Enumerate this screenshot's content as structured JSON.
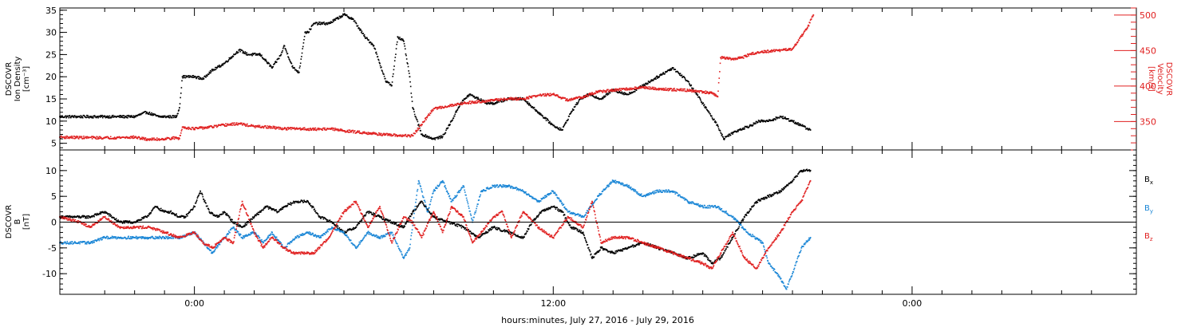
{
  "colors": {
    "black": "#000000",
    "red": "#e02020",
    "blue": "#1a86d6",
    "axis": "#000000"
  },
  "x_axis": {
    "label": "hours:minutes, July 27, 2016 - July 29, 2016",
    "range_hours": [
      -4.5,
      31.5
    ],
    "tick_labels": [
      {
        "hour": 0,
        "label": "0:00"
      },
      {
        "hour": 12,
        "label": "12:00"
      },
      {
        "hour": 24,
        "label": "0:00"
      }
    ],
    "minor_tick_hours": [
      -3,
      -2,
      -1,
      1,
      2,
      3,
      4,
      5,
      6,
      7,
      8,
      9,
      10,
      11,
      13,
      14,
      15,
      16,
      17,
      18,
      19,
      20,
      21,
      22,
      23,
      25,
      26,
      27,
      28,
      29,
      30
    ]
  },
  "chart_data": [
    {
      "type": "scatter",
      "panel": "top",
      "left_axis": {
        "label_lines": [
          "DSCOVR",
          "Ion Density",
          "[cm⁻³]"
        ],
        "ylim": [
          3.5,
          35.5
        ],
        "ticks": [
          5,
          10,
          15,
          20,
          25,
          30,
          35
        ]
      },
      "right_axis": {
        "label_lines": [
          "DSCOVR",
          "Velocity",
          "[km/s]"
        ],
        "ylim": [
          310,
          510
        ],
        "ticks": [
          350,
          400,
          450,
          500
        ]
      },
      "series": [
        {
          "axis": "left",
          "color": "black",
          "x": [
            -4.5,
            -3.0,
            -2.0,
            -1.6,
            -1.2,
            -0.6,
            -0.5,
            -0.4,
            0.0,
            0.3,
            0.5,
            1.0,
            1.5,
            1.8,
            2.2,
            2.6,
            2.9,
            3.0,
            3.3,
            3.5,
            3.7,
            3.8,
            4.0,
            4.5,
            5.0,
            5.3,
            5.7,
            6.0,
            6.2,
            6.4,
            6.6,
            6.8,
            7.0,
            7.2,
            7.3,
            7.6,
            8.0,
            8.3,
            8.6,
            8.9,
            9.2,
            9.5,
            9.8,
            10.0,
            10.5,
            11.0,
            11.5,
            12.0,
            12.3,
            12.6,
            12.9,
            13.2,
            13.6,
            14.0,
            14.5,
            15.0,
            15.5,
            16.0,
            16.5,
            17.0,
            17.2,
            17.5,
            17.7,
            17.9,
            18.2,
            18.6,
            18.9,
            19.2,
            19.6,
            20.0,
            20.3,
            20.6
          ],
          "y": [
            11,
            11,
            11,
            12,
            11,
            11,
            13,
            20,
            20,
            19.5,
            21,
            23,
            26,
            25,
            25,
            22,
            25,
            27,
            22,
            21,
            30,
            30,
            32,
            32,
            34,
            33,
            29,
            27,
            23,
            19,
            18,
            29,
            28,
            20,
            13,
            7,
            6,
            6.5,
            10,
            14,
            16,
            15,
            14,
            14,
            15,
            15,
            12,
            9,
            8,
            12,
            15,
            16,
            15,
            17,
            16,
            18,
            20,
            22,
            19,
            14,
            12,
            9,
            6,
            7,
            8,
            9,
            10,
            10,
            11,
            10,
            9,
            8
          ]
        },
        {
          "axis": "right",
          "color": "red",
          "x": [
            -4.5,
            -3.0,
            -2.0,
            -1.6,
            -1.2,
            -0.6,
            -0.5,
            -0.4,
            0.0,
            0.5,
            1.0,
            1.5,
            2.0,
            2.5,
            3.0,
            3.5,
            4.0,
            4.5,
            5.0,
            5.5,
            6.0,
            6.5,
            7.0,
            7.3,
            7.6,
            8.0,
            8.5,
            9.0,
            9.5,
            10.0,
            10.5,
            11.0,
            11.5,
            12.0,
            12.5,
            13.0,
            13.5,
            14.0,
            14.5,
            15.0,
            15.5,
            16.0,
            16.5,
            17.0,
            17.3,
            17.5,
            17.6,
            18.0,
            18.3,
            18.6,
            19.0,
            19.5,
            20.0,
            20.3,
            20.5,
            20.7
          ],
          "y": [
            328,
            327,
            328,
            325,
            325,
            327,
            326,
            342,
            340,
            342,
            345,
            347,
            343,
            342,
            340,
            340,
            339,
            340,
            337,
            335,
            333,
            331,
            330,
            330,
            346,
            368,
            372,
            376,
            378,
            380,
            382,
            382,
            387,
            388,
            380,
            385,
            392,
            394,
            396,
            398,
            396,
            395,
            394,
            392,
            390,
            385,
            440,
            438,
            440,
            445,
            448,
            450,
            452,
            470,
            482,
            500
          ]
        }
      ]
    },
    {
      "type": "scatter",
      "panel": "bottom",
      "left_axis": {
        "label_lines": [
          "DSCOVR",
          "B",
          "[nT]"
        ],
        "ylim": [
          -14,
          14
        ],
        "ticks": [
          -10,
          -5,
          0,
          5,
          10
        ]
      },
      "zero_line": 0,
      "series": [
        {
          "name": "Bx",
          "color": "black",
          "x": [
            -4.5,
            -3.5,
            -3.0,
            -2.5,
            -2.0,
            -1.6,
            -1.3,
            -1.0,
            -0.8,
            -0.5,
            -0.3,
            0.0,
            0.2,
            0.5,
            0.8,
            1.0,
            1.3,
            1.6,
            2.0,
            2.4,
            2.8,
            3.0,
            3.4,
            3.8,
            4.2,
            4.6,
            5.0,
            5.4,
            5.8,
            6.2,
            6.6,
            7.0,
            7.3,
            7.6,
            8.0,
            8.5,
            9.0,
            9.5,
            10.0,
            10.5,
            11.0,
            11.3,
            11.6,
            12.0,
            12.3,
            12.6,
            13.0,
            13.3,
            13.6,
            14.0,
            14.5,
            15.0,
            15.5,
            16.0,
            16.5,
            17.0,
            17.3,
            17.6,
            18.0,
            18.4,
            18.8,
            19.2,
            19.6,
            20.0,
            20.3,
            20.6
          ],
          "y": [
            1,
            1,
            2,
            0,
            0,
            1,
            3,
            2,
            2,
            1,
            1,
            3,
            6,
            2,
            1,
            2,
            0,
            -1,
            1,
            3,
            2,
            3,
            4,
            4,
            1,
            0,
            -2,
            -1,
            2,
            1,
            0,
            -1,
            2,
            4,
            1,
            0,
            -1,
            -3,
            -1,
            -2,
            -3,
            0,
            2,
            3,
            2,
            -1,
            -2,
            -7,
            -5,
            -6,
            -5,
            -4,
            -5,
            -6,
            -7,
            -6,
            -8,
            -7,
            -3,
            1,
            4,
            5,
            6,
            8,
            10,
            10
          ]
        },
        {
          "name": "By",
          "color": "blue",
          "x": [
            -4.5,
            -3.5,
            -3.0,
            -2.5,
            -2.0,
            -1.5,
            -1.0,
            -0.5,
            0.0,
            0.3,
            0.6,
            1.0,
            1.3,
            1.6,
            2.0,
            2.3,
            2.6,
            3.0,
            3.4,
            3.8,
            4.2,
            4.6,
            5.0,
            5.4,
            5.8,
            6.2,
            6.6,
            7.0,
            7.2,
            7.5,
            7.8,
            8.0,
            8.3,
            8.6,
            9.0,
            9.3,
            9.6,
            10.0,
            10.5,
            11.0,
            11.5,
            12.0,
            12.5,
            13.0,
            13.5,
            14.0,
            14.5,
            15.0,
            15.5,
            16.0,
            16.5,
            17.0,
            17.5,
            18.0,
            18.5,
            19.0,
            19.2,
            19.5,
            19.8,
            20.0,
            20.3,
            20.6
          ],
          "y": [
            -4,
            -4,
            -3,
            -3,
            -3,
            -3,
            -3,
            -3,
            -2,
            -4,
            -6,
            -3,
            -1,
            -3,
            -2,
            -4,
            -2,
            -5,
            -3,
            -2,
            -3,
            -1,
            -2,
            -5,
            -2,
            -3,
            -2,
            -7,
            -5,
            8,
            2,
            6,
            8,
            4,
            7,
            0,
            6,
            7,
            7,
            6,
            4,
            6,
            2,
            1,
            5,
            8,
            7,
            5,
            6,
            6,
            4,
            3,
            3,
            1,
            -2,
            -4,
            -8,
            -10,
            -13,
            -10,
            -5,
            -3
          ]
        },
        {
          "name": "Bz",
          "color": "red",
          "x": [
            -4.5,
            -3.8,
            -3.5,
            -3.0,
            -2.5,
            -2.0,
            -1.5,
            -1.0,
            -0.5,
            0.0,
            0.3,
            0.6,
            1.0,
            1.3,
            1.6,
            2.0,
            2.3,
            2.6,
            3.0,
            3.3,
            3.6,
            4.0,
            4.5,
            5.0,
            5.4,
            5.8,
            6.2,
            6.6,
            7.0,
            7.3,
            7.6,
            8.0,
            8.3,
            8.6,
            9.0,
            9.3,
            9.6,
            10.0,
            10.3,
            10.6,
            11.0,
            11.5,
            12.0,
            12.5,
            13.0,
            13.3,
            13.6,
            14.0,
            14.5,
            15.0,
            15.5,
            16.0,
            16.5,
            17.0,
            17.3,
            17.6,
            18.0,
            18.4,
            18.8,
            19.2,
            19.6,
            20.0,
            20.3,
            20.6
          ],
          "y": [
            1,
            0,
            -1,
            1,
            -1,
            -1,
            -1,
            -2,
            -3,
            -2,
            -4,
            -5,
            -3,
            -4,
            4,
            -2,
            -5,
            -3,
            -5,
            -6,
            -6,
            -6,
            -3,
            2,
            4,
            -1,
            3,
            -4,
            1,
            0,
            -3,
            2,
            -2,
            3,
            1,
            -4,
            -2,
            1,
            2,
            -3,
            2,
            -1,
            -3,
            1,
            -1,
            4,
            -4,
            -3,
            -3,
            -4,
            -5,
            -6,
            -7,
            -8,
            -9,
            -6,
            -2,
            -7,
            -9,
            -5,
            -2,
            2,
            4,
            8
          ]
        }
      ]
    }
  ]
}
